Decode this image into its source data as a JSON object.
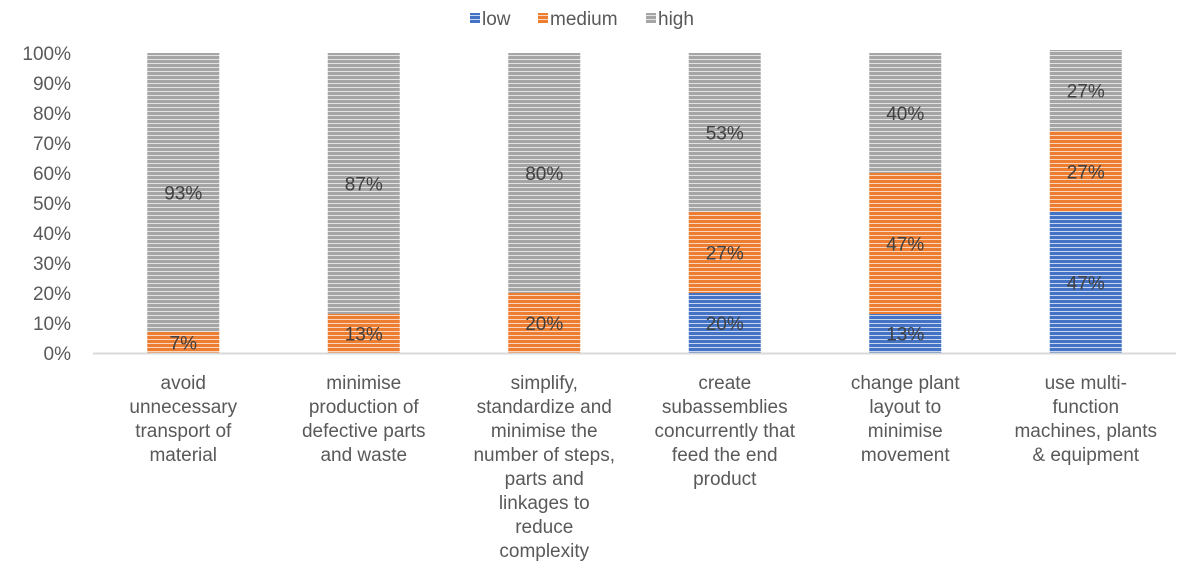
{
  "chart_data": {
    "type": "bar",
    "stacked": true,
    "title": "",
    "xlabel": "",
    "ylabel": "",
    "ylim": [
      0,
      100
    ],
    "y_ticks": [
      "0%",
      "10%",
      "20%",
      "30%",
      "40%",
      "50%",
      "60%",
      "70%",
      "80%",
      "90%",
      "100%"
    ],
    "grid": false,
    "legend_position": "top",
    "categories": [
      [
        "avoid",
        "unnecessary",
        "transport of",
        "material"
      ],
      [
        "minimise",
        "production of",
        "defective parts",
        "and waste"
      ],
      [
        "simplify,",
        "standardize and",
        "minimise the",
        "number of steps,",
        "parts and",
        "linkages to",
        "reduce",
        "complexity"
      ],
      [
        "create",
        "subassemblies",
        "concurrently that",
        "feed the  end",
        "product"
      ],
      [
        "change plant",
        "layout to",
        "minimise",
        "movement"
      ],
      [
        "use multi-",
        "function",
        "machines, plants",
        "& equipment"
      ]
    ],
    "series": [
      {
        "name": "low",
        "color": "#4472c4",
        "values": [
          0,
          0,
          0,
          20,
          13,
          47
        ],
        "labels": [
          "",
          "",
          "",
          "20%",
          "13%",
          "47%"
        ]
      },
      {
        "name": "medium",
        "color": "#ed7d31",
        "values": [
          7,
          13,
          20,
          27,
          47,
          27
        ],
        "labels": [
          "7%",
          "13%",
          "20%",
          "27%",
          "47%",
          "27%"
        ]
      },
      {
        "name": "high",
        "color": "#a5a5a5",
        "values": [
          93,
          87,
          80,
          53,
          40,
          27
        ],
        "labels": [
          "93%",
          "87%",
          "80%",
          "53%",
          "40%",
          "27%"
        ]
      }
    ]
  }
}
